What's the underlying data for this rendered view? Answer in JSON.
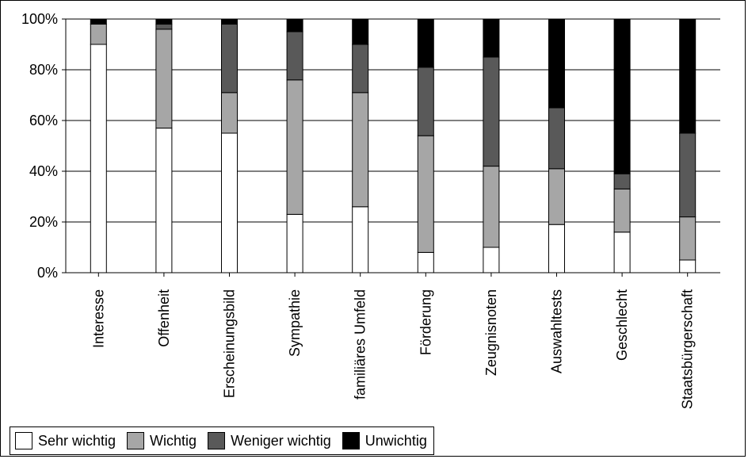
{
  "chart_data": {
    "type": "bar",
    "stacked": true,
    "percent_stacked": true,
    "categories": [
      "Interesse",
      "Offenheit",
      "Erscheinungsbild",
      "Sympathie",
      "familiäres Umfeld",
      "Förderung",
      "Zeugnisnoten",
      "Auswahltests",
      "Geschlecht",
      "Staatsbürgerschaft"
    ],
    "series": [
      {
        "name": "Sehr wichtig",
        "color": "#ffffff",
        "values": [
          90,
          57,
          55,
          23,
          26,
          8,
          10,
          19,
          16,
          5
        ]
      },
      {
        "name": "Wichtig",
        "color": "#a6a6a6",
        "values": [
          8,
          39,
          16,
          53,
          45,
          46,
          32,
          22,
          17,
          17
        ]
      },
      {
        "name": "Weniger wichtig",
        "color": "#595959",
        "values": [
          0,
          2,
          27,
          19,
          19,
          27,
          43,
          24,
          6,
          33
        ]
      },
      {
        "name": "Unwichtig",
        "color": "#000000",
        "values": [
          2,
          2,
          2,
          5,
          10,
          19,
          15,
          35,
          61,
          45
        ]
      }
    ],
    "y_ticks": [
      "0%",
      "20%",
      "40%",
      "60%",
      "80%",
      "100%"
    ],
    "ylim": [
      0,
      100
    ],
    "grid": true,
    "legend_position": "bottom-left"
  }
}
